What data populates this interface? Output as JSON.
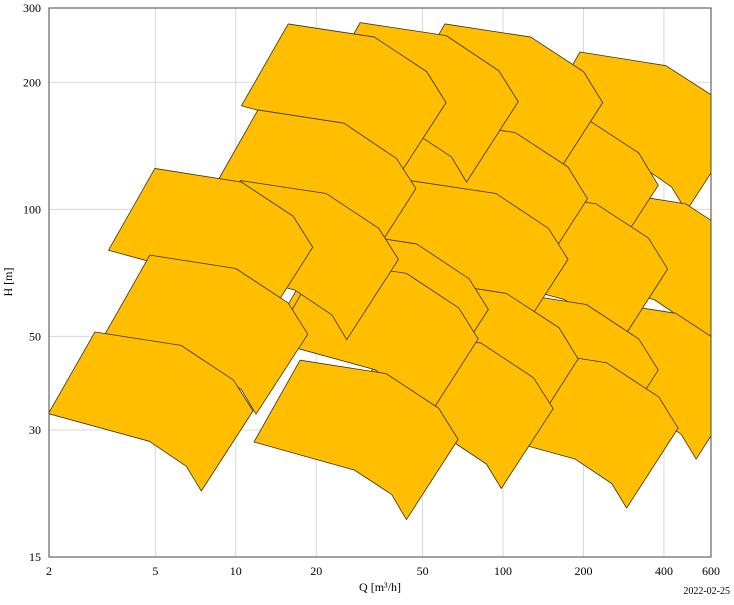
{
  "chart_data": {
    "type": "polygon",
    "x_label": "Q [m³/h]",
    "y_label": "H [m]",
    "date": "2022-02-25",
    "xscale": "log",
    "yscale": "log",
    "grid": true,
    "xlim": [
      2,
      600
    ],
    "ylim": [
      15,
      300
    ],
    "xticks": [
      2,
      5,
      10,
      20,
      50,
      100,
      200,
      400,
      600
    ],
    "yticks": [
      15,
      30,
      50,
      100,
      200,
      300
    ],
    "fill_color": "#ffbf00",
    "edge_color": "#3a3020",
    "tiles": [
      {
        "x": [
          194,
          407,
          640,
          757,
          485,
          427,
          310,
          130
        ],
        "y": [
          236,
          219,
          182,
          153,
          99.1,
          113,
          130,
          151
        ]
      },
      {
        "x": [
          230,
          483,
          759,
          897,
          575,
          506,
          368,
          154
        ],
        "y": [
          111,
          103,
          85.5,
          72.2,
          46.6,
          53.3,
          61.1,
          71
        ]
      },
      {
        "x": [
          211,
          443,
          696,
          823,
          528,
          464,
          338,
          141
        ],
        "y": [
          61,
          56.7,
          47,
          39.7,
          25.6,
          29.3,
          33.6,
          39
        ]
      },
      {
        "x": [
          97.6,
          205,
          322,
          381,
          244,
          215,
          156,
          65.4
        ],
        "y": [
          176,
          164,
          136,
          114,
          73.9,
          84.5,
          96.8,
          113
        ]
      },
      {
        "x": [
          106,
          223,
          350,
          413,
          265,
          233,
          170,
          71
        ],
        "y": [
          111,
          103,
          85.5,
          72.2,
          46.6,
          53.3,
          61.1,
          71
        ]
      },
      {
        "x": [
          97.6,
          205,
          322,
          381,
          244,
          215,
          156,
          65.4
        ],
        "y": [
          64,
          59.5,
          49.3,
          41.6,
          26.9,
          30.7,
          35.2,
          41
        ]
      },
      {
        "x": [
          116,
          244,
          383,
          452,
          290,
          255,
          186,
          77.7
        ],
        "y": [
          46.6,
          43.3,
          35.9,
          30.3,
          19.6,
          22.4,
          25.6,
          29.8
        ]
      },
      {
        "x": [
          60.6,
          127,
          200,
          236,
          152,
          133,
          97,
          40.6
        ],
        "y": [
          275,
          256,
          212,
          179,
          116,
          132,
          151,
          176
        ]
      },
      {
        "x": [
          53,
          111,
          175,
          207,
          133,
          117,
          84.8,
          35.5
        ],
        "y": [
          163,
          152,
          126,
          106,
          68.5,
          78.2,
          89.7,
          104
        ]
      },
      {
        "x": [
          44.8,
          94.1,
          148,
          175,
          112,
          98.6,
          71.7,
          30
        ],
        "y": [
          117,
          109,
          90.1,
          76.1,
          49.1,
          56.2,
          64.4,
          74.9
        ]
      },
      {
        "x": [
          49,
          103,
          162,
          191,
          123,
          108,
          78.4,
          32.8
        ],
        "y": [
          68,
          63.2,
          52.4,
          44.2,
          28.6,
          32.6,
          37.4,
          43.5
        ]
      },
      {
        "x": [
          39.4,
          82.7,
          130,
          154,
          98.5,
          86.7,
          63,
          26.4
        ],
        "y": [
          51.8,
          48.2,
          39.9,
          33.7,
          21.8,
          24.9,
          28.5,
          33.2
        ]
      },
      {
        "x": [
          29.2,
          61.3,
          96.4,
          114,
          73,
          64.2,
          46.7,
          19.6
        ],
        "y": [
          277,
          258,
          213,
          180,
          116,
          133,
          152,
          177
        ]
      },
      {
        "x": [
          22.6,
          47.5,
          74.6,
          88.1,
          56.5,
          49.7,
          36.2,
          15.1
        ],
        "y": [
          89,
          82.8,
          68.5,
          57.9,
          37.4,
          42.7,
          49,
          57
        ]
      },
      {
        "x": [
          20.7,
          43.5,
          68.3,
          80.7,
          51.8,
          45.5,
          33.1,
          13.9
        ],
        "y": [
          75.8,
          70.5,
          58.4,
          49.3,
          31.8,
          36.4,
          41.7,
          48.5
        ]
      },
      {
        "x": [
          17.4,
          36.5,
          57.4,
          67.9,
          43.5,
          38.3,
          27.8,
          11.7
        ],
        "y": [
          43.9,
          40.8,
          33.8,
          28.5,
          18.4,
          21.1,
          24.1,
          28.1
        ]
      },
      {
        "x": [
          15.7,
          33,
          51.8,
          61.2,
          39.3,
          34.5,
          25.1,
          10.5
        ],
        "y": [
          275,
          256,
          212,
          179,
          116,
          132,
          151,
          176
        ]
      },
      {
        "x": [
          12.1,
          25.4,
          39.9,
          47.2,
          30.3,
          26.6,
          19.4,
          8.11
        ],
        "y": [
          172,
          160,
          132,
          112,
          72.2,
          82.6,
          94.6,
          110
        ]
      },
      {
        "x": [
          10.4,
          21.8,
          34.3,
          40.6,
          26,
          22.9,
          16.6,
          6.97
        ],
        "y": [
          117,
          109,
          90.1,
          76.1,
          49.1,
          56.2,
          64.4,
          74.9
        ]
      },
      {
        "x": [
          4.98,
          10.5,
          16.4,
          19.4,
          12.5,
          11,
          7.97,
          3.34
        ],
        "y": [
          125,
          116,
          96.3,
          81.3,
          52.5,
          60,
          68.8,
          80
        ]
      },
      {
        "x": [
          4.77,
          10,
          15.7,
          18.6,
          11.9,
          10.5,
          7.63,
          3.2
        ],
        "y": [
          77.9,
          72.4,
          60,
          50.6,
          32.7,
          37.4,
          42.8,
          49.9
        ]
      },
      {
        "x": [
          2.97,
          6.24,
          9.8,
          11.6,
          7.43,
          6.53,
          4.75,
          1.99
        ],
        "y": [
          51.2,
          47.6,
          39.4,
          33.3,
          21.5,
          24.6,
          28.2,
          32.8
        ]
      }
    ]
  }
}
